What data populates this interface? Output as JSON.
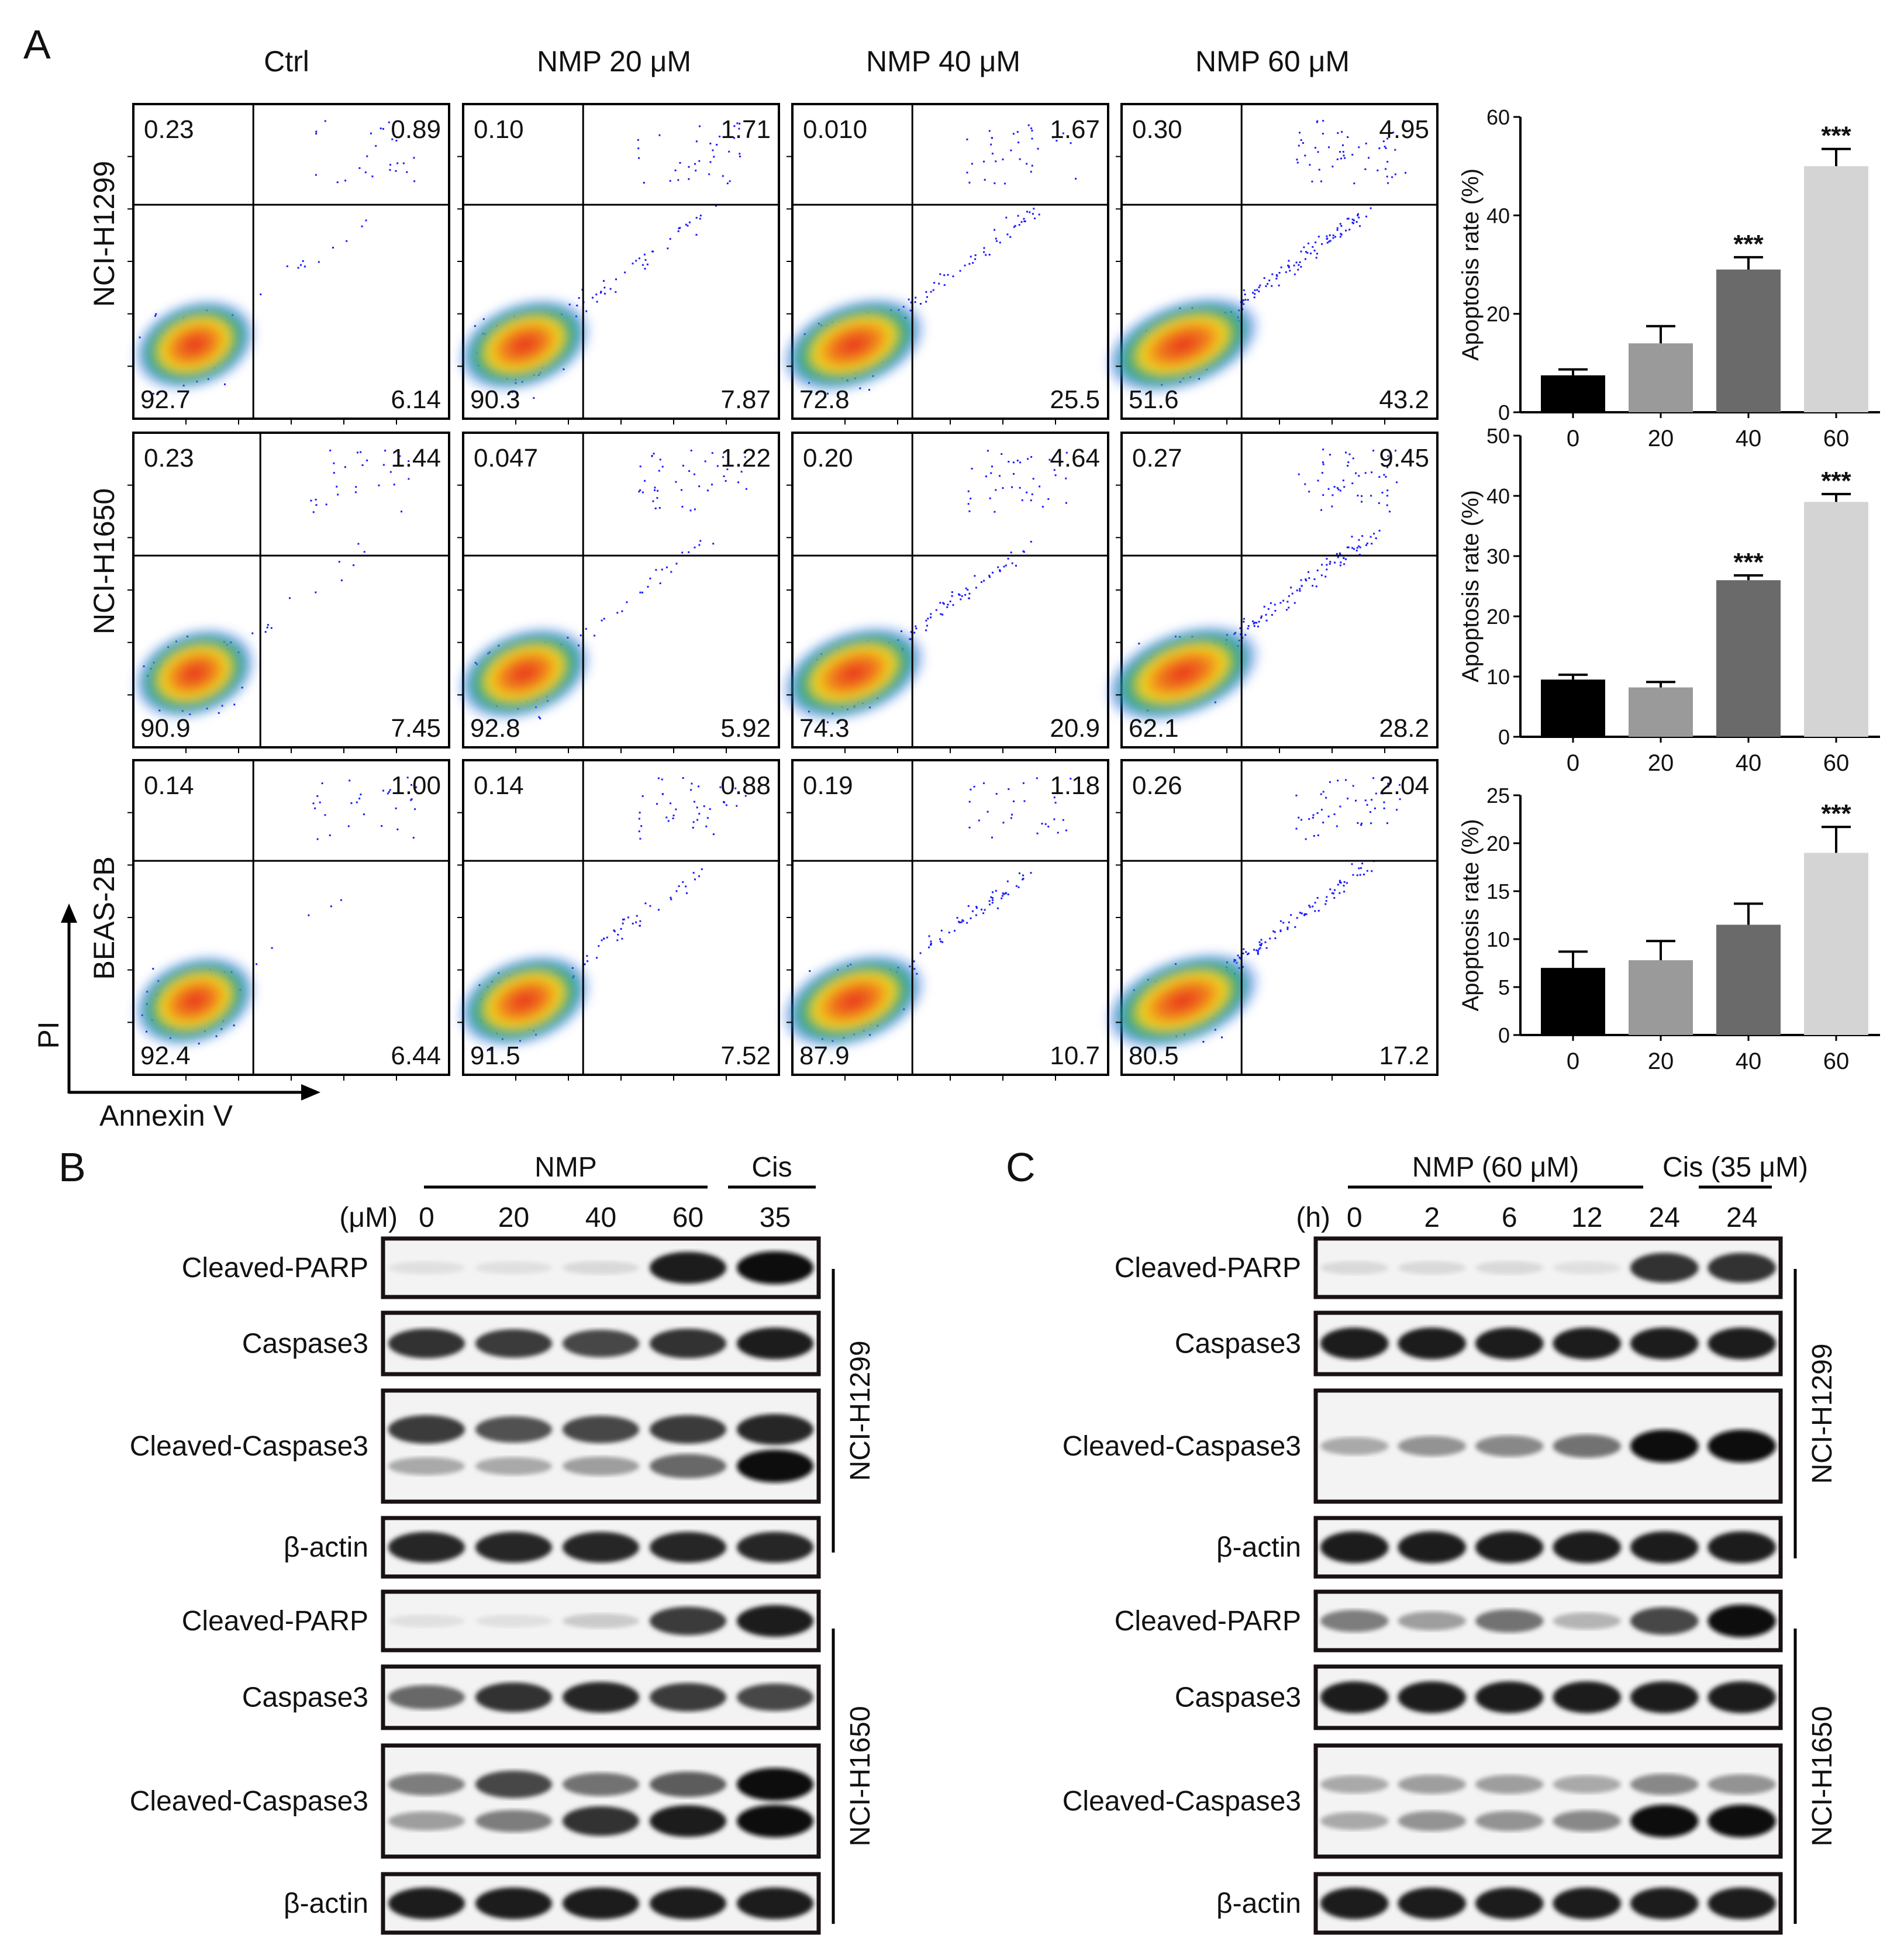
{
  "panel_labels": {
    "a": "A",
    "b": "B",
    "c": "C"
  },
  "flow": {
    "columns": [
      "Ctrl",
      "NMP 20 μM",
      "NMP 40 μM",
      "NMP 60 μM"
    ],
    "rows": [
      {
        "cell_line": "NCI-H1299",
        "quadrants": [
          [
            "0.23",
            "0.89",
            "92.7",
            "6.14"
          ],
          [
            "0.10",
            "1.71",
            "90.3",
            "7.87"
          ],
          [
            "0.010",
            "1.67",
            "72.8",
            "25.5"
          ],
          [
            "0.30",
            "4.95",
            "51.6",
            "43.2"
          ]
        ]
      },
      {
        "cell_line": "NCI-H1650",
        "quadrants": [
          [
            "0.23",
            "1.44",
            "90.9",
            "7.45"
          ],
          [
            "0.047",
            "1.22",
            "92.8",
            "5.92"
          ],
          [
            "0.20",
            "4.64",
            "74.3",
            "20.9"
          ],
          [
            "0.27",
            "9.45",
            "62.1",
            "28.2"
          ]
        ]
      },
      {
        "cell_line": "BEAS-2B",
        "quadrants": [
          [
            "0.14",
            "1.00",
            "92.4",
            "6.44"
          ],
          [
            "0.14",
            "0.88",
            "91.5",
            "7.52"
          ],
          [
            "0.19",
            "1.18",
            "87.9",
            "10.7"
          ],
          [
            "0.26",
            "2.04",
            "80.5",
            "17.2"
          ]
        ]
      }
    ],
    "y_axis_label": "PI",
    "x_axis_label": "Annexin V"
  },
  "chart_data": [
    {
      "type": "bar",
      "categories": [
        "0",
        "20",
        "40",
        "60"
      ],
      "values": [
        7.5,
        14,
        29,
        50
      ],
      "errors": [
        1.2,
        3.5,
        2.5,
        3.5
      ],
      "significance": [
        "",
        "",
        "***",
        "***"
      ],
      "ylabel": "Apoptosis rate (%)",
      "ylim": [
        0,
        60
      ],
      "yticks": [
        "0",
        "20",
        "40",
        "60"
      ],
      "colors": [
        "#000000",
        "#9a9a9a",
        "#6a6a6a",
        "#d4d4d4"
      ]
    },
    {
      "type": "bar",
      "categories": [
        "0",
        "20",
        "40",
        "60"
      ],
      "values": [
        9.5,
        8.2,
        26,
        39
      ],
      "errors": [
        0.8,
        0.9,
        0.8,
        1.3
      ],
      "significance": [
        "",
        "",
        "***",
        "***"
      ],
      "ylabel": "Apoptosis rate (%)",
      "ylim": [
        0,
        50
      ],
      "yticks": [
        "0",
        "10",
        "20",
        "30",
        "40",
        "50"
      ],
      "colors": [
        "#000000",
        "#9a9a9a",
        "#6a6a6a",
        "#d4d4d4"
      ]
    },
    {
      "type": "bar",
      "categories": [
        "0",
        "20",
        "40",
        "60"
      ],
      "values": [
        7.0,
        7.8,
        11.5,
        19.0
      ],
      "errors": [
        1.7,
        2.0,
        2.2,
        2.7
      ],
      "significance": [
        "",
        "",
        "",
        "***"
      ],
      "ylabel": "Apoptosis rate (%)",
      "ylim": [
        0,
        25
      ],
      "yticks": [
        "0",
        "5",
        "10",
        "15",
        "20",
        "25"
      ],
      "colors": [
        "#000000",
        "#9a9a9a",
        "#6a6a6a",
        "#d4d4d4"
      ]
    }
  ],
  "western_b": {
    "group1": "NMP",
    "group2": "Cis",
    "unit": "(μM)",
    "lanes": [
      "0",
      "20",
      "40",
      "60",
      "35"
    ],
    "blots": [
      "Cleaved-PARP",
      "Caspase3",
      "Cleaved-Caspase3",
      "β-actin",
      "Cleaved-PARP",
      "Caspase3",
      "Cleaved-Caspase3",
      "β-actin"
    ],
    "cell_lines": [
      "NCI-H1299",
      "NCI-H1650"
    ]
  },
  "western_c": {
    "group1": "NMP (60 μM)",
    "group2": "Cis (35 μM)",
    "unit": "(h)",
    "lanes": [
      "0",
      "2",
      "6",
      "12",
      "24",
      "24"
    ],
    "blots": [
      "Cleaved-PARP",
      "Caspase3",
      "Cleaved-Caspase3",
      "β-actin",
      "Cleaved-PARP",
      "Caspase3",
      "Cleaved-Caspase3",
      "β-actin"
    ],
    "cell_lines": [
      "NCI-H1299",
      "NCI-H1650"
    ]
  },
  "band_intensity_b": [
    [
      [
        0.05,
        0.05,
        0.08,
        0.95,
        1.0
      ]
    ],
    [
      [
        0.85,
        0.8,
        0.75,
        0.85,
        0.95
      ]
    ],
    [
      [
        0.8,
        0.7,
        0.75,
        0.8,
        0.9
      ],
      [
        0.3,
        0.3,
        0.35,
        0.6,
        1.0
      ]
    ],
    [
      [
        0.9,
        0.9,
        0.9,
        0.9,
        0.9
      ]
    ],
    [
      [
        0.05,
        0.05,
        0.15,
        0.8,
        0.95
      ]
    ],
    [
      [
        0.6,
        0.85,
        0.9,
        0.8,
        0.75
      ]
    ],
    [
      [
        0.5,
        0.75,
        0.55,
        0.65,
        1.0
      ],
      [
        0.35,
        0.5,
        0.85,
        0.95,
        1.0
      ]
    ],
    [
      [
        0.95,
        0.95,
        0.95,
        0.95,
        0.95
      ]
    ]
  ],
  "band_intensity_c": [
    [
      [
        0.08,
        0.08,
        0.08,
        0.05,
        0.85,
        0.85
      ]
    ],
    [
      [
        0.95,
        0.95,
        0.95,
        0.95,
        0.95,
        0.95
      ]
    ],
    [
      [
        0.3,
        0.4,
        0.45,
        0.55,
        1.0,
        1.0
      ]
    ],
    [
      [
        0.95,
        0.95,
        0.95,
        0.95,
        0.95,
        0.95
      ]
    ],
    [
      [
        0.5,
        0.35,
        0.55,
        0.25,
        0.75,
        1.0
      ]
    ],
    [
      [
        0.95,
        0.95,
        0.95,
        0.95,
        0.95,
        0.95
      ]
    ],
    [
      [
        0.3,
        0.35,
        0.35,
        0.3,
        0.45,
        0.4
      ],
      [
        0.3,
        0.4,
        0.4,
        0.45,
        1.0,
        1.0
      ]
    ],
    [
      [
        0.95,
        0.95,
        0.95,
        0.95,
        0.95,
        0.95
      ]
    ]
  ],
  "colors": {
    "density_high": "#e8301f",
    "density_mid": "#f2d21a",
    "density_low": "#1fa38a",
    "scatter": "#1a1aff",
    "frame": "#1a1212"
  }
}
